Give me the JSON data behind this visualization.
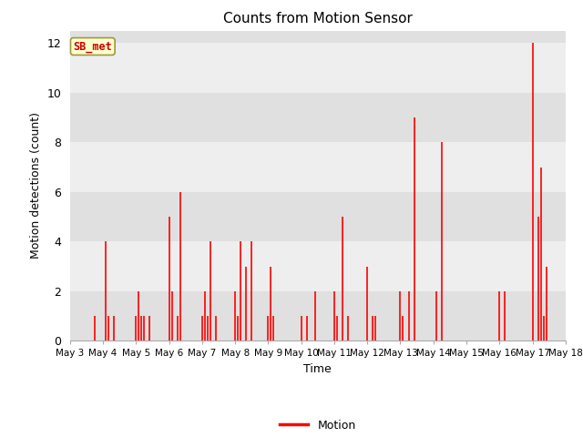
{
  "title": "Counts from Motion Sensor",
  "xlabel": "Time",
  "ylabel": "Motion detections (count)",
  "legend_label": "Motion",
  "annotation_text": "SB_met",
  "annotation_color": "#cc0000",
  "annotation_bg": "#ffffcc",
  "annotation_edge": "#999944",
  "line_color": "#ff0000",
  "bg_light": "#eeeeee",
  "bg_dark": "#e0e0e0",
  "ylim": [
    0,
    12.5
  ],
  "yticks": [
    0,
    2,
    4,
    6,
    8,
    10,
    12
  ],
  "series": [
    {
      "day": 3,
      "hour": 18,
      "value": 1
    },
    {
      "day": 4,
      "hour": 2,
      "value": 4
    },
    {
      "day": 4,
      "hour": 4,
      "value": 1
    },
    {
      "day": 4,
      "hour": 8,
      "value": 1
    },
    {
      "day": 5,
      "hour": 0,
      "value": 1
    },
    {
      "day": 5,
      "hour": 2,
      "value": 2
    },
    {
      "day": 5,
      "hour": 4,
      "value": 1
    },
    {
      "day": 5,
      "hour": 6,
      "value": 1
    },
    {
      "day": 5,
      "hour": 10,
      "value": 1
    },
    {
      "day": 6,
      "hour": 0,
      "value": 5
    },
    {
      "day": 6,
      "hour": 2,
      "value": 2
    },
    {
      "day": 6,
      "hour": 6,
      "value": 1
    },
    {
      "day": 6,
      "hour": 8,
      "value": 6
    },
    {
      "day": 7,
      "hour": 0,
      "value": 1
    },
    {
      "day": 7,
      "hour": 2,
      "value": 2
    },
    {
      "day": 7,
      "hour": 4,
      "value": 1
    },
    {
      "day": 7,
      "hour": 6,
      "value": 4
    },
    {
      "day": 7,
      "hour": 10,
      "value": 1
    },
    {
      "day": 8,
      "hour": 0,
      "value": 2
    },
    {
      "day": 8,
      "hour": 2,
      "value": 1
    },
    {
      "day": 8,
      "hour": 4,
      "value": 4
    },
    {
      "day": 8,
      "hour": 8,
      "value": 3
    },
    {
      "day": 8,
      "hour": 12,
      "value": 4
    },
    {
      "day": 9,
      "hour": 0,
      "value": 1
    },
    {
      "day": 9,
      "hour": 2,
      "value": 3
    },
    {
      "day": 9,
      "hour": 4,
      "value": 1
    },
    {
      "day": 10,
      "hour": 0,
      "value": 1
    },
    {
      "day": 10,
      "hour": 4,
      "value": 1
    },
    {
      "day": 10,
      "hour": 10,
      "value": 2
    },
    {
      "day": 11,
      "hour": 0,
      "value": 2
    },
    {
      "day": 11,
      "hour": 2,
      "value": 1
    },
    {
      "day": 11,
      "hour": 6,
      "value": 5
    },
    {
      "day": 11,
      "hour": 10,
      "value": 1
    },
    {
      "day": 12,
      "hour": 0,
      "value": 3
    },
    {
      "day": 12,
      "hour": 4,
      "value": 1
    },
    {
      "day": 12,
      "hour": 6,
      "value": 1
    },
    {
      "day": 13,
      "hour": 0,
      "value": 2
    },
    {
      "day": 13,
      "hour": 2,
      "value": 1
    },
    {
      "day": 13,
      "hour": 6,
      "value": 2
    },
    {
      "day": 13,
      "hour": 10,
      "value": 9
    },
    {
      "day": 14,
      "hour": 2,
      "value": 2
    },
    {
      "day": 14,
      "hour": 6,
      "value": 8
    },
    {
      "day": 16,
      "hour": 0,
      "value": 2
    },
    {
      "day": 16,
      "hour": 4,
      "value": 2
    },
    {
      "day": 17,
      "hour": 0,
      "value": 12
    },
    {
      "day": 17,
      "hour": 4,
      "value": 5
    },
    {
      "day": 17,
      "hour": 6,
      "value": 7
    },
    {
      "day": 17,
      "hour": 8,
      "value": 1
    },
    {
      "day": 17,
      "hour": 10,
      "value": 3
    }
  ],
  "xtick_days": [
    3,
    4,
    5,
    6,
    7,
    8,
    9,
    10,
    11,
    12,
    13,
    14,
    15,
    16,
    17,
    18
  ]
}
